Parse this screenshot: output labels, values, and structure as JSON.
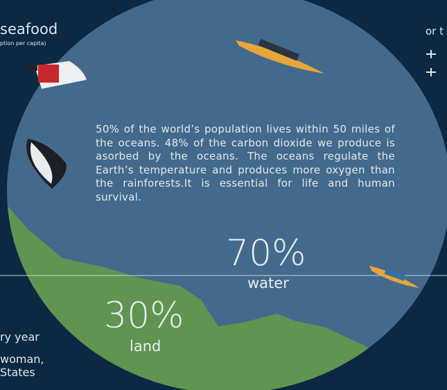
{
  "left_panel": {
    "title": "seafood",
    "subtitle": "ption per capita)",
    "line1": "ry year",
    "line2": "woman,",
    "line3": "States"
  },
  "right_panel": {
    "text": "or t"
  },
  "center": {
    "paragraph": "50% of the world’s population lives within 50 miles of the oceans. 48% of the carbon dioxide we produce is asorbed by the oceans. The oceans regulate the Earth’s temperature and produces more oxygen than the rainforests.It is essential for life and human survival.",
    "water": {
      "percent": "70%",
      "label": "water"
    },
    "land": {
      "percent": "30%",
      "label": "land"
    }
  }
}
